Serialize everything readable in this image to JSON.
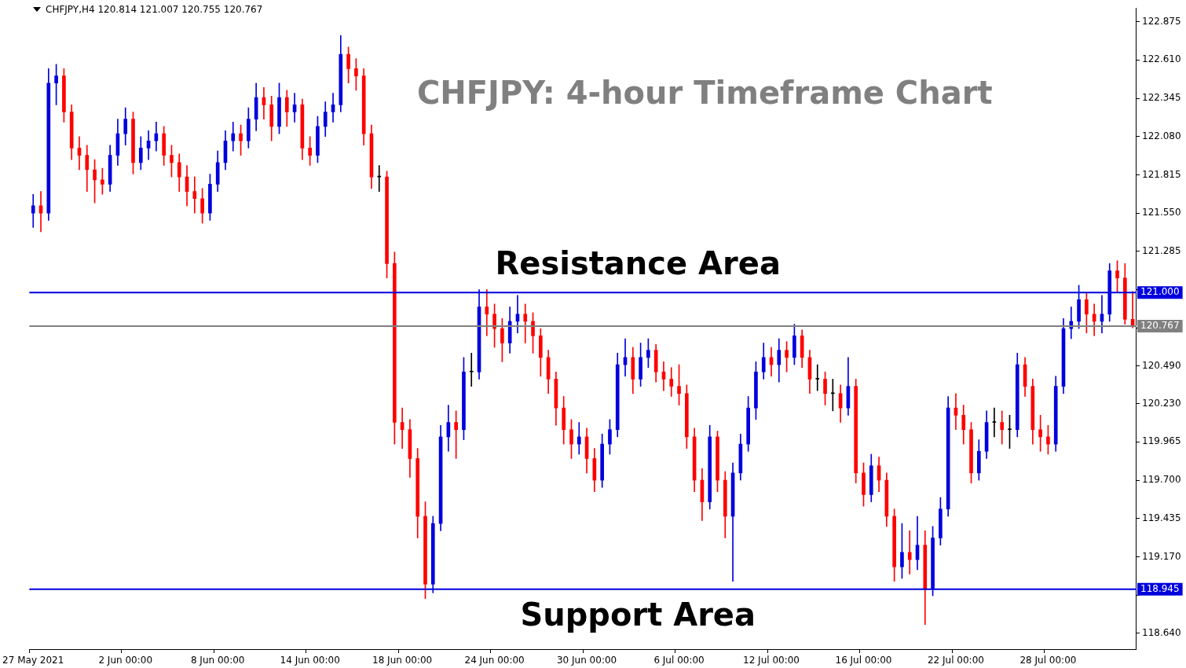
{
  "chart_data": {
    "type": "candlestick",
    "title": "CHFJPY: 4-hour Timeframe Chart",
    "subtitle": "CHFJPY,H4  120.814 121.007 120.755 120.767",
    "categories": [
      "27 May 2021",
      null,
      null,
      null,
      null,
      null,
      null,
      null,
      null,
      null,
      null,
      null,
      "2 Jun 00:00",
      null,
      null,
      null,
      null,
      null,
      null,
      null,
      null,
      null,
      null,
      null,
      "8 Jun 00:00",
      null,
      null,
      null,
      null,
      null,
      null,
      null,
      null,
      null,
      null,
      null,
      "14 Jun 00:00",
      null,
      null,
      null,
      null,
      null,
      null,
      null,
      null,
      null,
      null,
      null,
      "18 Jun 00:00",
      null,
      null,
      null,
      null,
      null,
      null,
      null,
      null,
      null,
      null,
      null,
      "24 Jun 00:00",
      null,
      null,
      null,
      null,
      null,
      null,
      null,
      null,
      null,
      null,
      null,
      "30 Jun 00:00",
      null,
      null,
      null,
      null,
      null,
      null,
      null,
      null,
      null,
      null,
      null,
      "6 Jul 00:00",
      null,
      null,
      null,
      null,
      null,
      null,
      null,
      null,
      null,
      null,
      null,
      "12 Jul 00:00",
      null,
      null,
      null,
      null,
      null,
      null,
      null,
      null,
      null,
      null,
      null,
      "16 Jul 00:00",
      null,
      null,
      null,
      null,
      null,
      null,
      null,
      null,
      null,
      null,
      null,
      "22 Jul 00:00",
      null,
      null,
      null,
      null,
      null,
      null,
      null,
      null,
      null,
      null,
      null,
      "28 Jul 00:00",
      null,
      null,
      null,
      null,
      null,
      null,
      null,
      null,
      null,
      null,
      null
    ],
    "ohlc": [
      [
        121.55,
        121.68,
        121.45,
        121.6
      ],
      [
        121.6,
        121.7,
        121.42,
        121.55
      ],
      [
        121.55,
        122.55,
        121.5,
        122.45
      ],
      [
        122.45,
        122.58,
        122.3,
        122.5
      ],
      [
        122.5,
        122.55,
        122.18,
        122.25
      ],
      [
        122.25,
        122.3,
        121.92,
        122.0
      ],
      [
        122.0,
        122.08,
        121.85,
        121.95
      ],
      [
        121.95,
        122.02,
        121.7,
        121.85
      ],
      [
        121.85,
        121.92,
        121.62,
        121.78
      ],
      [
        121.78,
        121.86,
        121.68,
        121.75
      ],
      [
        121.75,
        122.02,
        121.7,
        121.95
      ],
      [
        121.95,
        122.2,
        121.88,
        122.1
      ],
      [
        122.1,
        122.28,
        122.02,
        122.2
      ],
      [
        122.2,
        122.25,
        121.82,
        121.9
      ],
      [
        121.9,
        122.08,
        121.85,
        122.0
      ],
      [
        122.0,
        122.12,
        121.92,
        122.05
      ],
      [
        122.05,
        122.18,
        121.98,
        122.1
      ],
      [
        122.1,
        122.15,
        121.88,
        121.95
      ],
      [
        121.95,
        122.02,
        121.8,
        121.9
      ],
      [
        121.9,
        121.96,
        121.7,
        121.8
      ],
      [
        121.8,
        121.88,
        121.6,
        121.7
      ],
      [
        121.7,
        121.8,
        121.55,
        121.65
      ],
      [
        121.65,
        121.72,
        121.48,
        121.55
      ],
      [
        121.55,
        121.82,
        121.5,
        121.75
      ],
      [
        121.75,
        121.98,
        121.7,
        121.9
      ],
      [
        121.9,
        122.12,
        121.85,
        122.05
      ],
      [
        122.05,
        122.18,
        121.98,
        122.1
      ],
      [
        122.1,
        122.16,
        121.95,
        122.05
      ],
      [
        122.05,
        122.28,
        122.0,
        122.2
      ],
      [
        122.2,
        122.45,
        122.12,
        122.35
      ],
      [
        122.35,
        122.42,
        122.2,
        122.3
      ],
      [
        122.3,
        122.36,
        122.05,
        122.15
      ],
      [
        122.15,
        122.45,
        122.1,
        122.35
      ],
      [
        122.35,
        122.4,
        122.15,
        122.25
      ],
      [
        122.25,
        122.38,
        122.18,
        122.3
      ],
      [
        122.3,
        122.34,
        121.92,
        122.0
      ],
      [
        122.0,
        122.08,
        121.88,
        121.95
      ],
      [
        121.95,
        122.22,
        121.9,
        122.15
      ],
      [
        122.15,
        122.32,
        122.08,
        122.25
      ],
      [
        122.25,
        122.38,
        122.18,
        122.3
      ],
      [
        122.3,
        122.78,
        122.25,
        122.65
      ],
      [
        122.65,
        122.7,
        122.45,
        122.55
      ],
      [
        122.55,
        122.62,
        122.4,
        122.5
      ],
      [
        122.5,
        122.55,
        122.02,
        122.1
      ],
      [
        122.1,
        122.16,
        121.72,
        121.8
      ],
      [
        121.8,
        121.88,
        121.7,
        121.8
      ],
      [
        121.8,
        121.84,
        121.1,
        121.2
      ],
      [
        121.2,
        121.28,
        119.95,
        120.1
      ],
      [
        120.1,
        120.2,
        119.92,
        120.05
      ],
      [
        120.05,
        120.12,
        119.72,
        119.85
      ],
      [
        119.85,
        119.92,
        119.3,
        119.45
      ],
      [
        119.45,
        119.55,
        118.88,
        118.98
      ],
      [
        118.98,
        119.45,
        118.92,
        119.4
      ],
      [
        119.4,
        120.08,
        119.35,
        120.0
      ],
      [
        120.0,
        120.22,
        119.9,
        120.1
      ],
      [
        120.1,
        120.18,
        119.85,
        120.05
      ],
      [
        120.05,
        120.55,
        119.98,
        120.45
      ],
      [
        120.45,
        120.58,
        120.35,
        120.45
      ],
      [
        120.45,
        121.02,
        120.4,
        120.9
      ],
      [
        120.9,
        121.02,
        120.7,
        120.85
      ],
      [
        120.85,
        120.92,
        120.62,
        120.75
      ],
      [
        120.75,
        120.82,
        120.52,
        120.65
      ],
      [
        120.65,
        120.9,
        120.58,
        120.8
      ],
      [
        120.8,
        120.98,
        120.72,
        120.85
      ],
      [
        120.85,
        120.92,
        120.65,
        120.8
      ],
      [
        120.8,
        120.86,
        120.58,
        120.7
      ],
      [
        120.7,
        120.75,
        120.42,
        120.55
      ],
      [
        120.55,
        120.6,
        120.3,
        120.4
      ],
      [
        120.4,
        120.45,
        120.08,
        120.2
      ],
      [
        120.2,
        120.28,
        119.95,
        120.05
      ],
      [
        120.05,
        120.12,
        119.85,
        119.95
      ],
      [
        119.95,
        120.1,
        119.88,
        120.0
      ],
      [
        120.0,
        120.06,
        119.75,
        119.85
      ],
      [
        119.85,
        119.92,
        119.62,
        119.7
      ],
      [
        119.7,
        120.02,
        119.65,
        119.95
      ],
      [
        119.95,
        120.12,
        119.88,
        120.05
      ],
      [
        120.05,
        120.58,
        120.0,
        120.5
      ],
      [
        120.5,
        120.68,
        120.42,
        120.55
      ],
      [
        120.55,
        120.62,
        120.3,
        120.4
      ],
      [
        120.4,
        120.65,
        120.35,
        120.55
      ],
      [
        120.55,
        120.68,
        120.48,
        120.6
      ],
      [
        120.6,
        120.64,
        120.38,
        120.45
      ],
      [
        120.45,
        120.52,
        120.32,
        120.4
      ],
      [
        120.4,
        120.48,
        120.28,
        120.35
      ],
      [
        120.35,
        120.5,
        120.22,
        120.3
      ],
      [
        120.3,
        120.36,
        119.92,
        120.0
      ],
      [
        120.0,
        120.06,
        119.62,
        119.7
      ],
      [
        119.7,
        119.78,
        119.42,
        119.55
      ],
      [
        119.55,
        120.08,
        119.5,
        120.0
      ],
      [
        120.0,
        120.04,
        119.62,
        119.7
      ],
      [
        119.7,
        119.76,
        119.3,
        119.45
      ],
      [
        119.45,
        119.82,
        119.0,
        119.75
      ],
      [
        119.75,
        120.02,
        119.7,
        119.95
      ],
      [
        119.95,
        120.28,
        119.9,
        120.2
      ],
      [
        120.2,
        120.52,
        120.12,
        120.45
      ],
      [
        120.45,
        120.65,
        120.4,
        120.55
      ],
      [
        120.55,
        120.62,
        120.42,
        120.5
      ],
      [
        120.5,
        120.68,
        120.38,
        120.6
      ],
      [
        120.6,
        120.66,
        120.45,
        120.55
      ],
      [
        120.55,
        120.78,
        120.5,
        120.7
      ],
      [
        120.7,
        120.74,
        120.48,
        120.55
      ],
      [
        120.55,
        120.6,
        120.3,
        120.4
      ],
      [
        120.4,
        120.5,
        120.32,
        120.4
      ],
      [
        120.4,
        120.45,
        120.22,
        120.3
      ],
      [
        120.3,
        120.4,
        120.18,
        120.3
      ],
      [
        120.3,
        120.36,
        120.1,
        120.2
      ],
      [
        120.2,
        120.55,
        120.15,
        120.35
      ],
      [
        120.35,
        120.4,
        119.68,
        119.75
      ],
      [
        119.75,
        119.82,
        119.52,
        119.6
      ],
      [
        119.6,
        119.88,
        119.55,
        119.8
      ],
      [
        119.8,
        119.86,
        119.62,
        119.7
      ],
      [
        119.7,
        119.75,
        119.38,
        119.45
      ],
      [
        119.45,
        119.5,
        119.0,
        119.1
      ],
      [
        119.1,
        119.4,
        119.02,
        119.2
      ],
      [
        119.2,
        119.35,
        119.05,
        119.15
      ],
      [
        119.15,
        119.45,
        119.08,
        119.25
      ],
      [
        119.25,
        119.35,
        118.7,
        118.95
      ],
      [
        118.95,
        119.38,
        118.9,
        119.3
      ],
      [
        119.3,
        119.58,
        119.25,
        119.5
      ],
      [
        119.5,
        120.28,
        119.45,
        120.2
      ],
      [
        120.2,
        120.3,
        120.05,
        120.15
      ],
      [
        120.15,
        120.22,
        119.95,
        120.05
      ],
      [
        120.05,
        120.1,
        119.68,
        119.75
      ],
      [
        119.75,
        119.98,
        119.7,
        119.9
      ],
      [
        119.9,
        120.18,
        119.85,
        120.1
      ],
      [
        120.1,
        120.2,
        120.0,
        120.1
      ],
      [
        120.1,
        120.18,
        119.95,
        120.05
      ],
      [
        120.05,
        120.15,
        119.92,
        120.05
      ],
      [
        120.05,
        120.58,
        120.0,
        120.5
      ],
      [
        120.5,
        120.55,
        120.28,
        120.35
      ],
      [
        120.35,
        120.4,
        119.95,
        120.05
      ],
      [
        120.05,
        120.15,
        119.9,
        120.0
      ],
      [
        120.0,
        120.08,
        119.88,
        119.95
      ],
      [
        119.95,
        120.42,
        119.9,
        120.35
      ],
      [
        120.35,
        120.82,
        120.3,
        120.75
      ],
      [
        120.75,
        120.9,
        120.68,
        120.8
      ],
      [
        120.8,
        121.05,
        120.75,
        120.95
      ],
      [
        120.95,
        121.0,
        120.72,
        120.85
      ],
      [
        120.85,
        120.92,
        120.7,
        120.8
      ],
      [
        120.8,
        120.98,
        120.72,
        120.85
      ],
      [
        120.85,
        121.2,
        120.8,
        121.15
      ],
      [
        121.15,
        121.22,
        121.0,
        121.1
      ],
      [
        121.1,
        121.2,
        120.78,
        120.814
      ],
      [
        120.814,
        121.007,
        120.755,
        120.767
      ]
    ],
    "colors": [
      "#0000dd",
      "#ff0000",
      "#0000dd",
      "#0000dd",
      "#ff0000",
      "#ff0000",
      "#ff0000",
      "#ff0000",
      "#ff0000",
      "#ff0000",
      "#0000dd",
      "#0000dd",
      "#0000dd",
      "#ff0000",
      "#0000dd",
      "#0000dd",
      "#0000dd",
      "#ff0000",
      "#ff0000",
      "#ff0000",
      "#ff0000",
      "#ff0000",
      "#ff0000",
      "#0000dd",
      "#0000dd",
      "#0000dd",
      "#0000dd",
      "#ff0000",
      "#0000dd",
      "#0000dd",
      "#ff0000",
      "#ff0000",
      "#0000dd",
      "#ff0000",
      "#0000dd",
      "#ff0000",
      "#ff0000",
      "#0000dd",
      "#0000dd",
      "#0000dd",
      "#0000dd",
      "#ff0000",
      "#ff0000",
      "#ff0000",
      "#ff0000",
      "#000000",
      "#ff0000",
      "#ff0000",
      "#ff0000",
      "#ff0000",
      "#ff0000",
      "#ff0000",
      "#0000dd",
      "#0000dd",
      "#0000dd",
      "#ff0000",
      "#0000dd",
      "#000000",
      "#0000dd",
      "#ff0000",
      "#ff0000",
      "#ff0000",
      "#0000dd",
      "#0000dd",
      "#ff0000",
      "#ff0000",
      "#ff0000",
      "#ff0000",
      "#ff0000",
      "#ff0000",
      "#ff0000",
      "#0000dd",
      "#ff0000",
      "#ff0000",
      "#0000dd",
      "#0000dd",
      "#0000dd",
      "#0000dd",
      "#ff0000",
      "#0000dd",
      "#0000dd",
      "#ff0000",
      "#ff0000",
      "#ff0000",
      "#ff0000",
      "#ff0000",
      "#ff0000",
      "#ff0000",
      "#0000dd",
      "#ff0000",
      "#ff0000",
      "#0000dd",
      "#0000dd",
      "#0000dd",
      "#0000dd",
      "#0000dd",
      "#ff0000",
      "#0000dd",
      "#ff0000",
      "#0000dd",
      "#ff0000",
      "#ff0000",
      "#000000",
      "#ff0000",
      "#000000",
      "#ff0000",
      "#0000dd",
      "#ff0000",
      "#ff0000",
      "#0000dd",
      "#ff0000",
      "#ff0000",
      "#ff0000",
      "#0000dd",
      "#ff0000",
      "#0000dd",
      "#ff0000",
      "#0000dd",
      "#0000dd",
      "#0000dd",
      "#ff0000",
      "#ff0000",
      "#ff0000",
      "#0000dd",
      "#0000dd",
      "#000000",
      "#ff0000",
      "#000000",
      "#0000dd",
      "#ff0000",
      "#ff0000",
      "#ff0000",
      "#ff0000",
      "#0000dd",
      "#0000dd",
      "#0000dd",
      "#0000dd",
      "#ff0000",
      "#ff0000",
      "#0000dd",
      "#0000dd",
      "#ff0000",
      "#ff0000",
      "#ff0000"
    ],
    "ylim": [
      118.53,
      122.97
    ],
    "yticks": [
      122.875,
      {
        "value": 122.61,
        "label": "122.610"
      },
      122.345,
      {
        "value": 122.08,
        "label": "122.080"
      },
      121.815,
      {
        "value": 121.55,
        "label": "121.550"
      },
      121.285,
      {
        "value": 121.02,
        "label": null
      },
      {
        "value": 120.755,
        "label": null
      },
      {
        "value": 120.49,
        "label": "120.490"
      },
      {
        "value": 120.23,
        "label": "120.230"
      },
      119.965,
      {
        "value": 119.7,
        "label": "119.700"
      },
      119.435,
      {
        "value": 119.17,
        "label": "119.170"
      },
      {
        "value": 118.905,
        "label": null
      },
      {
        "value": 118.64,
        "label": "118.640"
      }
    ],
    "ref_lines": [
      {
        "axis": "y",
        "value": 121.0,
        "label": "121.000",
        "color": "#0000dd"
      },
      {
        "axis": "y",
        "value": 118.945,
        "label": "118.945",
        "color": "#0000dd"
      },
      {
        "axis": "y",
        "value": 120.767,
        "label": "120.767",
        "color": "#808080"
      }
    ],
    "annotations": [
      {
        "text": "Resistance Area",
        "y": 121.0
      },
      {
        "text": "Support Area",
        "y": 118.945
      }
    ]
  }
}
